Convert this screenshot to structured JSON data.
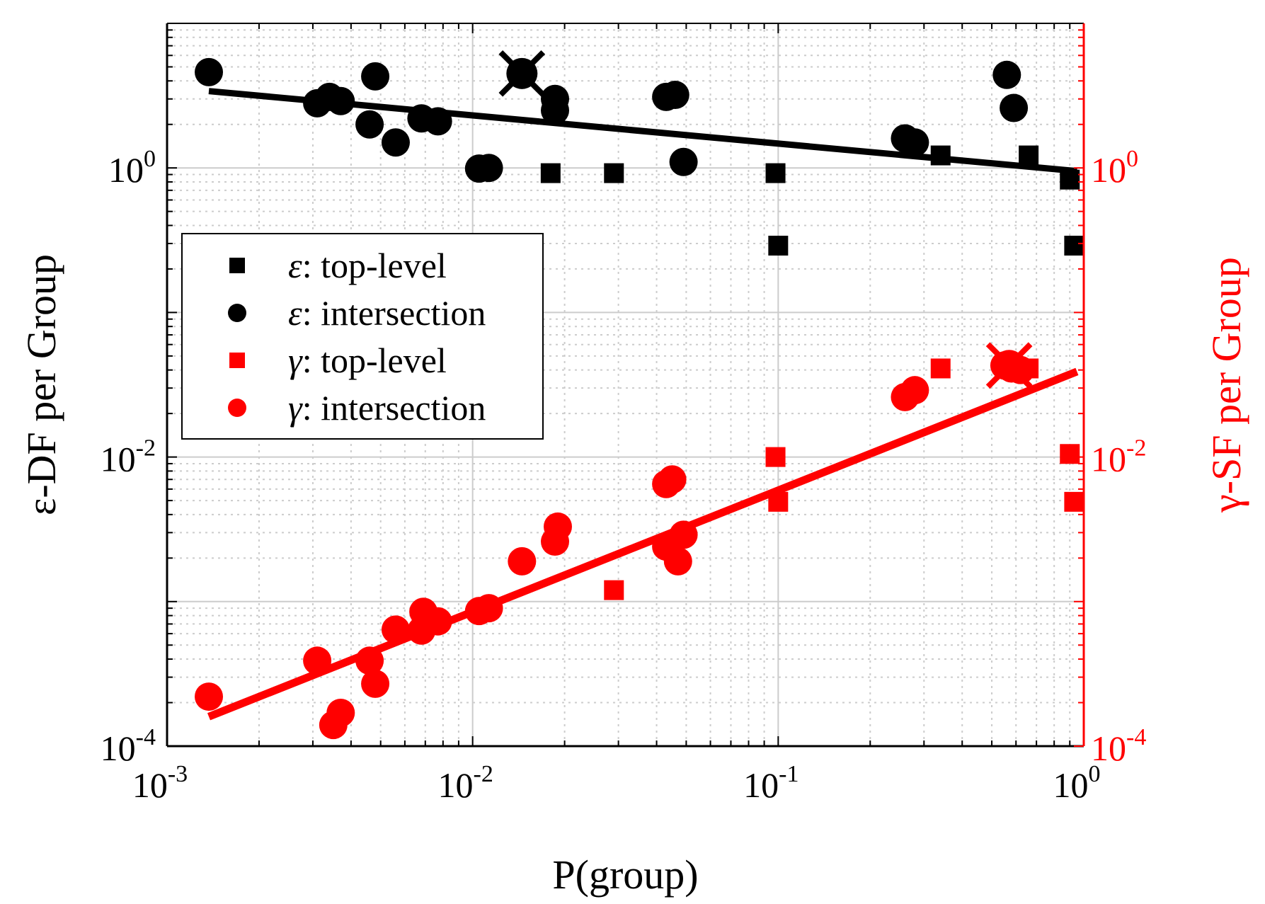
{
  "chart_data": {
    "type": "scatter",
    "xscale": "log",
    "yscale": "log",
    "xlabel": "P(group)",
    "ylabel_left": "ε-DF per Group",
    "ylabel_right": "γ-SF per Group",
    "xlim": [
      0.001,
      1
    ],
    "ylim": [
      0.0001,
      10
    ],
    "grid": true,
    "colors": {
      "black": "#000000",
      "red": "#ff0000",
      "grid": "#cccccc"
    },
    "x_ticks": [
      {
        "value": 0.001,
        "base": "10",
        "exp": "-3"
      },
      {
        "value": 0.01,
        "base": "10",
        "exp": "-2"
      },
      {
        "value": 0.1,
        "base": "10",
        "exp": "-1"
      },
      {
        "value": 1,
        "base": "10",
        "exp": "0"
      }
    ],
    "y_ticks_left": [
      {
        "value": 0.0001,
        "base": "10",
        "exp": "-4"
      },
      {
        "value": 0.01,
        "base": "10",
        "exp": "-2"
      },
      {
        "value": 1,
        "base": "10",
        "exp": "0"
      }
    ],
    "y_ticks_right": [
      {
        "value": 0.0001,
        "base": "10",
        "exp": "-4"
      },
      {
        "value": 0.01,
        "base": "10",
        "exp": "-2"
      },
      {
        "value": 1,
        "base": "10",
        "exp": "0"
      }
    ],
    "legend": {
      "location": "middle-left",
      "entries": [
        {
          "marker": "square",
          "color": "#000000",
          "symbol": "ε",
          "text": ": top-level"
        },
        {
          "marker": "circle",
          "color": "#000000",
          "symbol": "ε",
          "text": ": intersection"
        },
        {
          "marker": "square",
          "color": "#ff0000",
          "symbol": "γ",
          "text": ": top-level"
        },
        {
          "marker": "circle",
          "color": "#ff0000",
          "symbol": "γ",
          "text": ": intersection"
        }
      ]
    },
    "series": [
      {
        "name": "ε: top-level",
        "marker": "square",
        "color": "#000000",
        "points": [
          [
            0.018,
            0.92
          ],
          [
            0.029,
            0.92
          ],
          [
            0.098,
            0.92
          ],
          [
            0.1,
            0.29
          ],
          [
            0.34,
            1.22
          ],
          [
            0.66,
            1.22
          ],
          [
            0.9,
            0.83
          ],
          [
            0.93,
            0.29
          ]
        ]
      },
      {
        "name": "ε: intersection",
        "marker": "circle",
        "color": "#000000",
        "points": [
          [
            0.00137,
            4.6
          ],
          [
            0.0031,
            2.8
          ],
          [
            0.0034,
            3.1
          ],
          [
            0.0037,
            2.9
          ],
          [
            0.0046,
            2.0
          ],
          [
            0.0048,
            4.3
          ],
          [
            0.0056,
            1.5
          ],
          [
            0.0068,
            2.2
          ],
          [
            0.0077,
            2.1
          ],
          [
            0.0105,
            0.99
          ],
          [
            0.0113,
            1.0
          ],
          [
            0.0186,
            3.0
          ],
          [
            0.0186,
            2.5
          ],
          [
            0.043,
            3.1
          ],
          [
            0.046,
            3.2
          ],
          [
            0.049,
            1.1
          ],
          [
            0.26,
            1.6
          ],
          [
            0.28,
            1.5
          ],
          [
            0.56,
            4.4
          ],
          [
            0.59,
            2.6
          ]
        ]
      },
      {
        "name": "γ: top-level",
        "marker": "square",
        "color": "#ff0000",
        "points": [
          [
            0.029,
            0.0012
          ],
          [
            0.098,
            0.01
          ],
          [
            0.1,
            0.0049
          ],
          [
            0.34,
            0.041
          ],
          [
            0.66,
            0.041
          ],
          [
            0.9,
            0.0105
          ],
          [
            0.93,
            0.0049
          ]
        ]
      },
      {
        "name": "γ: intersection",
        "marker": "circle",
        "color": "#ff0000",
        "points": [
          [
            0.00137,
            0.00022
          ],
          [
            0.0031,
            0.00039
          ],
          [
            0.0035,
            0.00014
          ],
          [
            0.0037,
            0.00017
          ],
          [
            0.0046,
            0.00039
          ],
          [
            0.0048,
            0.00027
          ],
          [
            0.0056,
            0.00064
          ],
          [
            0.0068,
            0.00063
          ],
          [
            0.0069,
            0.00085
          ],
          [
            0.0077,
            0.00073
          ],
          [
            0.0105,
            0.00086
          ],
          [
            0.0113,
            0.0009
          ],
          [
            0.0145,
            0.0019
          ],
          [
            0.0186,
            0.0026
          ],
          [
            0.019,
            0.0033
          ],
          [
            0.043,
            0.0065
          ],
          [
            0.045,
            0.007
          ],
          [
            0.043,
            0.0024
          ],
          [
            0.047,
            0.0019
          ],
          [
            0.049,
            0.0029
          ],
          [
            0.26,
            0.026
          ],
          [
            0.28,
            0.029
          ],
          [
            0.55,
            0.043
          ],
          [
            0.58,
            0.041
          ],
          [
            0.62,
            0.04
          ]
        ]
      }
    ],
    "highlighted_points": [
      {
        "series": "ε: intersection",
        "x": 0.0145,
        "y": 4.5,
        "marker": "x"
      },
      {
        "series": "γ: intersection",
        "x": 0.57,
        "y": 0.043,
        "marker": "x"
      }
    ],
    "fit_lines": [
      {
        "name": "ε fit",
        "color": "#000000",
        "x": [
          0.00137,
          0.95
        ],
        "y": [
          3.4,
          0.95
        ]
      },
      {
        "name": "γ fit",
        "color": "#ff0000",
        "x": [
          0.00137,
          0.95
        ],
        "y": [
          0.00016,
          0.039
        ]
      }
    ]
  }
}
